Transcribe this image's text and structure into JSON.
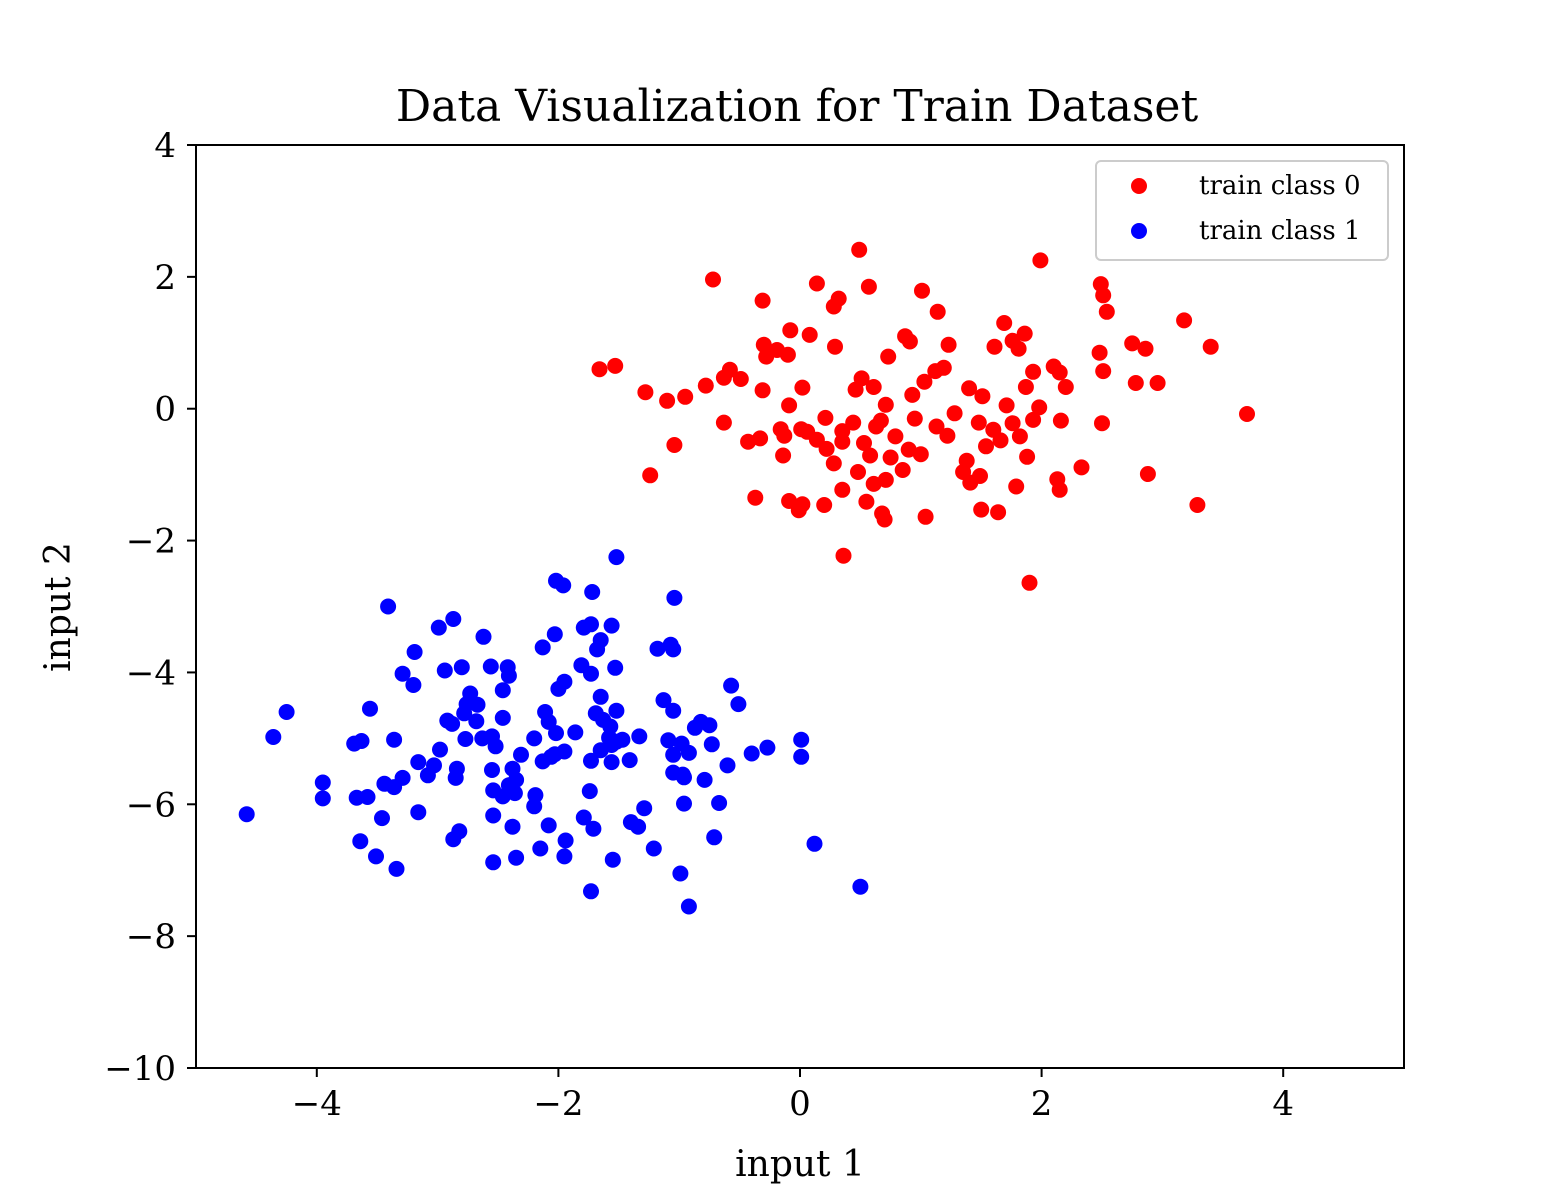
{
  "chart_data": {
    "type": "scatter",
    "title": "Data Visualization for Train Dataset",
    "xlabel": "input 1",
    "ylabel": "input 2",
    "xlim": [
      -5,
      5
    ],
    "ylim": [
      -10,
      4
    ],
    "xticks": [
      -4,
      -2,
      0,
      2,
      4
    ],
    "yticks": [
      4,
      2,
      0,
      -2,
      -4,
      -6,
      -8,
      -10
    ],
    "grid": false,
    "legend_position": "top-right",
    "series": [
      {
        "name": "train class 0",
        "color": "#ff0000",
        "points": [
          [
            -0.72,
            1.96
          ],
          [
            0.49,
            2.41
          ],
          [
            1.99,
            2.25
          ],
          [
            0.14,
            1.9
          ],
          [
            -0.31,
            1.64
          ],
          [
            0.28,
            1.55
          ],
          [
            0.32,
            1.67
          ],
          [
            0.57,
            1.85
          ],
          [
            1.01,
            1.79
          ],
          [
            1.14,
            1.47
          ],
          [
            2.49,
            1.89
          ],
          [
            2.51,
            1.72
          ],
          [
            2.54,
            1.47
          ],
          [
            3.18,
            1.34
          ],
          [
            3.4,
            0.94
          ],
          [
            -1.66,
            0.6
          ],
          [
            -1.53,
            0.65
          ],
          [
            -1.28,
            0.25
          ],
          [
            -1.1,
            0.12
          ],
          [
            -0.95,
            0.18
          ],
          [
            -0.78,
            0.35
          ],
          [
            -0.63,
            0.47
          ],
          [
            -0.58,
            0.59
          ],
          [
            -0.49,
            0.45
          ],
          [
            -0.3,
            0.97
          ],
          [
            -0.28,
            0.79
          ],
          [
            -0.19,
            0.89
          ],
          [
            -0.1,
            0.82
          ],
          [
            -0.08,
            1.19
          ],
          [
            0.08,
            1.12
          ],
          [
            0.29,
            0.94
          ],
          [
            -0.31,
            0.28
          ],
          [
            0.02,
            0.32
          ],
          [
            0.46,
            0.29
          ],
          [
            0.51,
            0.46
          ],
          [
            0.61,
            0.33
          ],
          [
            0.71,
            0.06
          ],
          [
            0.73,
            0.79
          ],
          [
            0.87,
            1.1
          ],
          [
            0.91,
            1.02
          ],
          [
            0.93,
            0.21
          ],
          [
            1.03,
            0.41
          ],
          [
            1.12,
            0.57
          ],
          [
            1.19,
            0.62
          ],
          [
            1.23,
            0.97
          ],
          [
            1.4,
            0.31
          ],
          [
            1.51,
            0.19
          ],
          [
            1.61,
            0.94
          ],
          [
            1.69,
            1.3
          ],
          [
            1.76,
            1.03
          ],
          [
            1.81,
            0.91
          ],
          [
            1.86,
            1.14
          ],
          [
            1.93,
            0.56
          ],
          [
            1.87,
            0.33
          ],
          [
            2.1,
            0.64
          ],
          [
            2.15,
            0.55
          ],
          [
            2.2,
            0.33
          ],
          [
            2.48,
            0.85
          ],
          [
            2.51,
            0.57
          ],
          [
            2.75,
            0.99
          ],
          [
            2.86,
            0.91
          ],
          [
            2.96,
            0.39
          ],
          [
            2.78,
            0.39
          ],
          [
            3.7,
            -0.08
          ],
          [
            -1.04,
            -0.55
          ],
          [
            -1.24,
            -1.01
          ],
          [
            -0.63,
            -0.21
          ],
          [
            -0.43,
            -0.5
          ],
          [
            -0.33,
            -0.45
          ],
          [
            -0.16,
            -0.31
          ],
          [
            -0.14,
            -0.71
          ],
          [
            -0.13,
            -0.41
          ],
          [
            -0.09,
            0.05
          ],
          [
            0.01,
            -0.31
          ],
          [
            0.06,
            -0.35
          ],
          [
            0.14,
            -0.47
          ],
          [
            0.22,
            -0.61
          ],
          [
            0.21,
            -0.14
          ],
          [
            0.28,
            -0.83
          ],
          [
            0.35,
            -0.5
          ],
          [
            0.35,
            -0.34
          ],
          [
            0.44,
            -0.21
          ],
          [
            0.48,
            -0.96
          ],
          [
            0.53,
            -0.52
          ],
          [
            0.58,
            -0.71
          ],
          [
            0.61,
            -1.14
          ],
          [
            0.63,
            -0.27
          ],
          [
            0.67,
            -0.18
          ],
          [
            0.71,
            -1.08
          ],
          [
            0.75,
            -0.74
          ],
          [
            0.79,
            -0.42
          ],
          [
            0.85,
            -0.93
          ],
          [
            0.9,
            -0.62
          ],
          [
            0.95,
            -0.15
          ],
          [
            1.0,
            -0.69
          ],
          [
            1.04,
            -1.64
          ],
          [
            1.13,
            -0.27
          ],
          [
            1.22,
            -0.41
          ],
          [
            1.28,
            -0.07
          ],
          [
            1.35,
            -0.96
          ],
          [
            1.38,
            -0.79
          ],
          [
            1.41,
            -1.12
          ],
          [
            1.48,
            -0.21
          ],
          [
            1.49,
            -1.02
          ],
          [
            1.5,
            -1.53
          ],
          [
            1.54,
            -0.57
          ],
          [
            1.6,
            -0.32
          ],
          [
            1.64,
            -1.57
          ],
          [
            1.66,
            -0.48
          ],
          [
            1.71,
            0.05
          ],
          [
            1.76,
            -0.22
          ],
          [
            1.79,
            -1.18
          ],
          [
            1.82,
            -0.42
          ],
          [
            1.88,
            -0.73
          ],
          [
            1.9,
            -2.64
          ],
          [
            1.93,
            -0.17
          ],
          [
            1.98,
            0.02
          ],
          [
            2.16,
            -0.18
          ],
          [
            2.15,
            -1.23
          ],
          [
            2.13,
            -1.07
          ],
          [
            2.33,
            -0.89
          ],
          [
            2.5,
            -0.22
          ],
          [
            2.88,
            -0.99
          ],
          [
            3.29,
            -1.46
          ],
          [
            -0.37,
            -1.35
          ],
          [
            -0.09,
            -1.4
          ],
          [
            -0.01,
            -1.54
          ],
          [
            0.02,
            -1.45
          ],
          [
            0.2,
            -1.46
          ],
          [
            0.35,
            -1.23
          ],
          [
            0.36,
            -2.23
          ],
          [
            0.55,
            -1.41
          ],
          [
            0.68,
            -1.59
          ],
          [
            0.7,
            -1.68
          ]
        ]
      },
      {
        "name": "train class 1",
        "color": "#0000ff",
        "points": [
          [
            -1.52,
            -2.25
          ],
          [
            -2.02,
            -2.61
          ],
          [
            -1.96,
            -2.68
          ],
          [
            -1.72,
            -2.78
          ],
          [
            -1.04,
            -2.87
          ],
          [
            -3.41,
            -3.0
          ],
          [
            -2.87,
            -3.19
          ],
          [
            -2.99,
            -3.32
          ],
          [
            -1.73,
            -3.27
          ],
          [
            -1.56,
            -3.29
          ],
          [
            -1.79,
            -3.32
          ],
          [
            -2.03,
            -3.42
          ],
          [
            -2.62,
            -3.46
          ],
          [
            -1.65,
            -3.51
          ],
          [
            -1.68,
            -3.65
          ],
          [
            -1.07,
            -3.58
          ],
          [
            -1.18,
            -3.64
          ],
          [
            -2.13,
            -3.62
          ],
          [
            -1.05,
            -3.65
          ],
          [
            -3.19,
            -3.69
          ],
          [
            -1.81,
            -3.89
          ],
          [
            -1.53,
            -3.93
          ],
          [
            -2.56,
            -3.91
          ],
          [
            -2.42,
            -3.92
          ],
          [
            -2.8,
            -3.92
          ],
          [
            -2.94,
            -3.97
          ],
          [
            -3.29,
            -4.02
          ],
          [
            -2.41,
            -4.05
          ],
          [
            -1.73,
            -4.02
          ],
          [
            -3.2,
            -4.19
          ],
          [
            -1.95,
            -4.14
          ],
          [
            -2.0,
            -4.25
          ],
          [
            -2.73,
            -4.32
          ],
          [
            -2.46,
            -4.27
          ],
          [
            -1.65,
            -4.37
          ],
          [
            -0.57,
            -4.2
          ],
          [
            -4.25,
            -4.6
          ],
          [
            -3.56,
            -4.55
          ],
          [
            -2.67,
            -4.49
          ],
          [
            -2.76,
            -4.48
          ],
          [
            -2.78,
            -4.62
          ],
          [
            -2.11,
            -4.6
          ],
          [
            -1.69,
            -4.62
          ],
          [
            -1.52,
            -4.58
          ],
          [
            -1.13,
            -4.42
          ],
          [
            -1.05,
            -4.58
          ],
          [
            -0.51,
            -4.48
          ],
          [
            -2.92,
            -4.73
          ],
          [
            -2.88,
            -4.78
          ],
          [
            -2.68,
            -4.74
          ],
          [
            -2.46,
            -4.69
          ],
          [
            -2.08,
            -4.75
          ],
          [
            -1.63,
            -4.72
          ],
          [
            -1.57,
            -4.82
          ],
          [
            -0.87,
            -4.84
          ],
          [
            -0.82,
            -4.75
          ],
          [
            -0.75,
            -4.8
          ],
          [
            -4.36,
            -4.98
          ],
          [
            -3.63,
            -5.04
          ],
          [
            -3.36,
            -5.02
          ],
          [
            -2.77,
            -5.01
          ],
          [
            -2.63,
            -5.0
          ],
          [
            -2.55,
            -4.97
          ],
          [
            -2.2,
            -5.0
          ],
          [
            -2.02,
            -4.92
          ],
          [
            -1.86,
            -4.91
          ],
          [
            -1.58,
            -4.99
          ],
          [
            -1.47,
            -5.02
          ],
          [
            -1.33,
            -4.97
          ],
          [
            -1.09,
            -5.03
          ],
          [
            -0.98,
            -5.08
          ],
          [
            -0.73,
            -5.09
          ],
          [
            -0.27,
            -5.14
          ],
          [
            0.01,
            -5.02
          ],
          [
            -3.69,
            -5.08
          ],
          [
            -2.98,
            -5.17
          ],
          [
            -2.52,
            -5.12
          ],
          [
            -2.31,
            -5.25
          ],
          [
            -2.03,
            -5.24
          ],
          [
            -1.95,
            -5.2
          ],
          [
            -1.65,
            -5.18
          ],
          [
            -1.56,
            -5.1
          ],
          [
            -1.52,
            -5.05
          ],
          [
            -1.05,
            -5.25
          ],
          [
            -0.92,
            -5.22
          ],
          [
            -0.4,
            -5.23
          ],
          [
            -3.16,
            -5.36
          ],
          [
            -3.03,
            -5.41
          ],
          [
            -2.84,
            -5.46
          ],
          [
            -2.55,
            -5.48
          ],
          [
            -2.38,
            -5.46
          ],
          [
            -2.13,
            -5.35
          ],
          [
            -2.06,
            -5.28
          ],
          [
            -1.73,
            -5.34
          ],
          [
            -1.56,
            -5.36
          ],
          [
            -1.41,
            -5.33
          ],
          [
            -1.05,
            -5.52
          ],
          [
            -0.97,
            -5.55
          ],
          [
            -0.6,
            -5.41
          ],
          [
            0.01,
            -5.28
          ],
          [
            -3.95,
            -5.67
          ],
          [
            -3.44,
            -5.69
          ],
          [
            -3.36,
            -5.74
          ],
          [
            -3.29,
            -5.6
          ],
          [
            -3.08,
            -5.56
          ],
          [
            -2.85,
            -5.6
          ],
          [
            -2.54,
            -5.79
          ],
          [
            -2.41,
            -5.71
          ],
          [
            -2.36,
            -5.83
          ],
          [
            -2.35,
            -5.63
          ],
          [
            -2.19,
            -5.86
          ],
          [
            -1.74,
            -5.8
          ],
          [
            -0.96,
            -5.59
          ],
          [
            -0.79,
            -5.63
          ],
          [
            -3.95,
            -5.91
          ],
          [
            -3.67,
            -5.9
          ],
          [
            -3.58,
            -5.89
          ],
          [
            -2.46,
            -5.88
          ],
          [
            -2.2,
            -6.03
          ],
          [
            -1.29,
            -6.06
          ],
          [
            -0.96,
            -5.99
          ],
          [
            -0.67,
            -5.98
          ],
          [
            -4.58,
            -6.15
          ],
          [
            -3.46,
            -6.21
          ],
          [
            -3.16,
            -6.12
          ],
          [
            -2.54,
            -6.17
          ],
          [
            -2.38,
            -6.34
          ],
          [
            -2.08,
            -6.32
          ],
          [
            -1.79,
            -6.2
          ],
          [
            -1.71,
            -6.37
          ],
          [
            -1.4,
            -6.27
          ],
          [
            -1.34,
            -6.34
          ],
          [
            -3.64,
            -6.56
          ],
          [
            -2.87,
            -6.53
          ],
          [
            -2.82,
            -6.41
          ],
          [
            -1.94,
            -6.55
          ],
          [
            -0.71,
            -6.5
          ],
          [
            -3.51,
            -6.79
          ],
          [
            -3.34,
            -6.98
          ],
          [
            -2.54,
            -6.88
          ],
          [
            -2.35,
            -6.81
          ],
          [
            -2.15,
            -6.67
          ],
          [
            -1.95,
            -6.79
          ],
          [
            -1.55,
            -6.84
          ],
          [
            -1.21,
            -6.67
          ],
          [
            0.12,
            -6.6
          ],
          [
            -0.99,
            -7.05
          ],
          [
            -1.73,
            -7.32
          ],
          [
            0.5,
            -7.25
          ],
          [
            -0.92,
            -7.55
          ]
        ]
      }
    ]
  }
}
